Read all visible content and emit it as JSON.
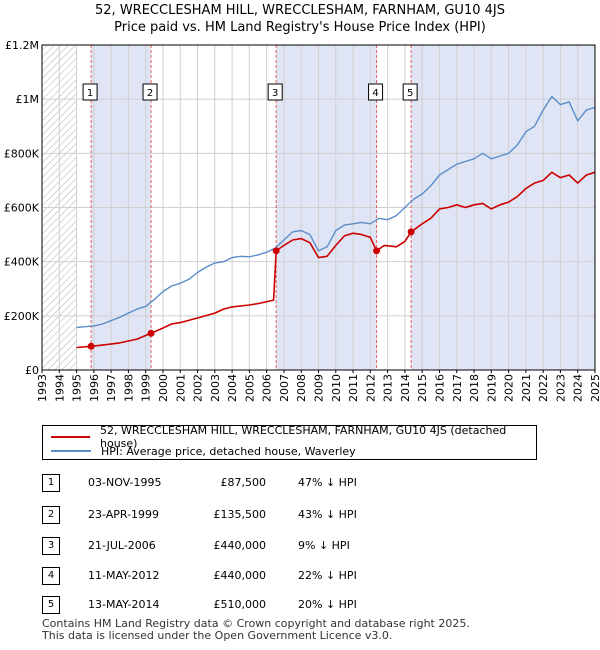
{
  "title": {
    "line1": "52, WRECCLESHAM HILL, WRECCLESHAM, FARNHAM, GU10 4JS",
    "line2": "Price paid vs. HM Land Registry's House Price Index (HPI)"
  },
  "colors": {
    "property": "#cc0000",
    "hpi": "#5b8ec9",
    "shade": "#dfe5f5",
    "grid": "#d0d0d0",
    "marker_line": "#e06060"
  },
  "chart_data": {
    "type": "line",
    "x_range": [
      1993,
      2025
    ],
    "ylim": [
      0,
      1200000
    ],
    "y_ticks": [
      {
        "value": 0,
        "label": "£0"
      },
      {
        "value": 200000,
        "label": "£200K"
      },
      {
        "value": 400000,
        "label": "£400K"
      },
      {
        "value": 600000,
        "label": "£600K"
      },
      {
        "value": 800000,
        "label": "£800K"
      },
      {
        "value": 1000000,
        "label": "£1M"
      },
      {
        "value": 1200000,
        "label": "£1.2M"
      }
    ],
    "x_ticks": [
      "1993",
      "1994",
      "1995",
      "1996",
      "1997",
      "1998",
      "1999",
      "2000",
      "2001",
      "2002",
      "2003",
      "2004",
      "2005",
      "2006",
      "2007",
      "2008",
      "2009",
      "2010",
      "2011",
      "2012",
      "2013",
      "2014",
      "2015",
      "2016",
      "2017",
      "2018",
      "2019",
      "2020",
      "2021",
      "2022",
      "2023",
      "2024",
      "2025"
    ],
    "hatch_before": 1995.0,
    "shaded_bands": [
      [
        1995.84,
        1999.31
      ],
      [
        2006.55,
        2012.36
      ],
      [
        2014.36,
        2025.0
      ]
    ],
    "series": [
      {
        "name": "52, WRECCLESHAM HILL, WRECCLESHAM, FARNHAM, GU10 4JS (detached house)",
        "key": "property",
        "points": [
          [
            1995.0,
            83000
          ],
          [
            1995.84,
            87500
          ],
          [
            1996.5,
            92000
          ],
          [
            1997.5,
            100000
          ],
          [
            1998.5,
            114000
          ],
          [
            1999.31,
            135500
          ],
          [
            2000.0,
            155000
          ],
          [
            2000.5,
            170000
          ],
          [
            2001.0,
            175000
          ],
          [
            2002.0,
            192000
          ],
          [
            2003.0,
            210000
          ],
          [
            2003.5,
            225000
          ],
          [
            2004.0,
            233000
          ],
          [
            2005.0,
            240000
          ],
          [
            2005.5,
            245000
          ],
          [
            2006.4,
            258000
          ],
          [
            2006.55,
            440000
          ],
          [
            2007.0,
            460000
          ],
          [
            2007.5,
            480000
          ],
          [
            2008.0,
            485000
          ],
          [
            2008.5,
            470000
          ],
          [
            2009.0,
            415000
          ],
          [
            2009.5,
            420000
          ],
          [
            2010.0,
            460000
          ],
          [
            2010.5,
            495000
          ],
          [
            2011.0,
            505000
          ],
          [
            2011.5,
            500000
          ],
          [
            2012.0,
            490000
          ],
          [
            2012.36,
            440000
          ],
          [
            2012.8,
            460000
          ],
          [
            2013.5,
            455000
          ],
          [
            2014.0,
            475000
          ],
          [
            2014.36,
            510000
          ],
          [
            2015.0,
            540000
          ],
          [
            2015.5,
            560000
          ],
          [
            2016.0,
            595000
          ],
          [
            2016.5,
            600000
          ],
          [
            2017.0,
            610000
          ],
          [
            2017.5,
            600000
          ],
          [
            2018.0,
            610000
          ],
          [
            2018.5,
            615000
          ],
          [
            2019.0,
            595000
          ],
          [
            2019.5,
            610000
          ],
          [
            2020.0,
            620000
          ],
          [
            2020.5,
            640000
          ],
          [
            2021.0,
            670000
          ],
          [
            2021.5,
            690000
          ],
          [
            2022.0,
            700000
          ],
          [
            2022.5,
            730000
          ],
          [
            2023.0,
            710000
          ],
          [
            2023.5,
            720000
          ],
          [
            2024.0,
            690000
          ],
          [
            2024.5,
            720000
          ],
          [
            2025.0,
            730000
          ]
        ]
      },
      {
        "name": "HPI: Average price, detached house, Waverley",
        "key": "hpi",
        "points": [
          [
            1995.0,
            157000
          ],
          [
            1995.5,
            160000
          ],
          [
            1996.0,
            163000
          ],
          [
            1996.5,
            170000
          ],
          [
            1997.0,
            182000
          ],
          [
            1997.5,
            195000
          ],
          [
            1998.0,
            210000
          ],
          [
            1998.5,
            225000
          ],
          [
            1999.0,
            235000
          ],
          [
            1999.5,
            260000
          ],
          [
            2000.0,
            290000
          ],
          [
            2000.5,
            310000
          ],
          [
            2001.0,
            320000
          ],
          [
            2001.5,
            335000
          ],
          [
            2002.0,
            360000
          ],
          [
            2002.5,
            380000
          ],
          [
            2003.0,
            395000
          ],
          [
            2003.5,
            400000
          ],
          [
            2004.0,
            415000
          ],
          [
            2004.5,
            420000
          ],
          [
            2005.0,
            418000
          ],
          [
            2005.5,
            425000
          ],
          [
            2006.0,
            435000
          ],
          [
            2006.5,
            450000
          ],
          [
            2007.0,
            480000
          ],
          [
            2007.5,
            510000
          ],
          [
            2008.0,
            515000
          ],
          [
            2008.5,
            500000
          ],
          [
            2009.0,
            440000
          ],
          [
            2009.5,
            455000
          ],
          [
            2010.0,
            515000
          ],
          [
            2010.5,
            535000
          ],
          [
            2011.0,
            540000
          ],
          [
            2011.5,
            545000
          ],
          [
            2012.0,
            540000
          ],
          [
            2012.5,
            560000
          ],
          [
            2013.0,
            555000
          ],
          [
            2013.5,
            570000
          ],
          [
            2014.0,
            600000
          ],
          [
            2014.5,
            630000
          ],
          [
            2015.0,
            650000
          ],
          [
            2015.5,
            680000
          ],
          [
            2016.0,
            720000
          ],
          [
            2016.5,
            740000
          ],
          [
            2017.0,
            760000
          ],
          [
            2017.5,
            770000
          ],
          [
            2018.0,
            780000
          ],
          [
            2018.5,
            800000
          ],
          [
            2019.0,
            780000
          ],
          [
            2019.5,
            790000
          ],
          [
            2020.0,
            800000
          ],
          [
            2020.5,
            830000
          ],
          [
            2021.0,
            880000
          ],
          [
            2021.5,
            900000
          ],
          [
            2022.0,
            960000
          ],
          [
            2022.5,
            1010000
          ],
          [
            2023.0,
            980000
          ],
          [
            2023.5,
            990000
          ],
          [
            2024.0,
            920000
          ],
          [
            2024.5,
            960000
          ],
          [
            2025.0,
            970000
          ]
        ]
      }
    ],
    "sales": [
      {
        "label": "1",
        "x": 1995.84,
        "y": 87500
      },
      {
        "label": "2",
        "x": 1999.31,
        "y": 135500
      },
      {
        "label": "3",
        "x": 2006.55,
        "y": 440000
      },
      {
        "label": "4",
        "x": 2012.36,
        "y": 440000
      },
      {
        "label": "5",
        "x": 2014.36,
        "y": 510000
      }
    ]
  },
  "legend": {
    "property_label": "52, WRECCLESHAM HILL, WRECCLESHAM, FARNHAM, GU10 4JS (detached house)",
    "hpi_label": "HPI: Average price, detached house, Waverley"
  },
  "table": [
    {
      "num": "1",
      "date": "03-NOV-1995",
      "price": "£87,500",
      "hpi": "47% ↓ HPI"
    },
    {
      "num": "2",
      "date": "23-APR-1999",
      "price": "£135,500",
      "hpi": "43% ↓ HPI"
    },
    {
      "num": "3",
      "date": "21-JUL-2006",
      "price": "£440,000",
      "hpi": "9% ↓ HPI"
    },
    {
      "num": "4",
      "date": "11-MAY-2012",
      "price": "£440,000",
      "hpi": "22% ↓ HPI"
    },
    {
      "num": "5",
      "date": "13-MAY-2014",
      "price": "£510,000",
      "hpi": "20% ↓ HPI"
    }
  ],
  "footer": {
    "line1": "Contains HM Land Registry data © Crown copyright and database right 2025.",
    "line2": "This data is licensed under the Open Government Licence v3.0."
  }
}
